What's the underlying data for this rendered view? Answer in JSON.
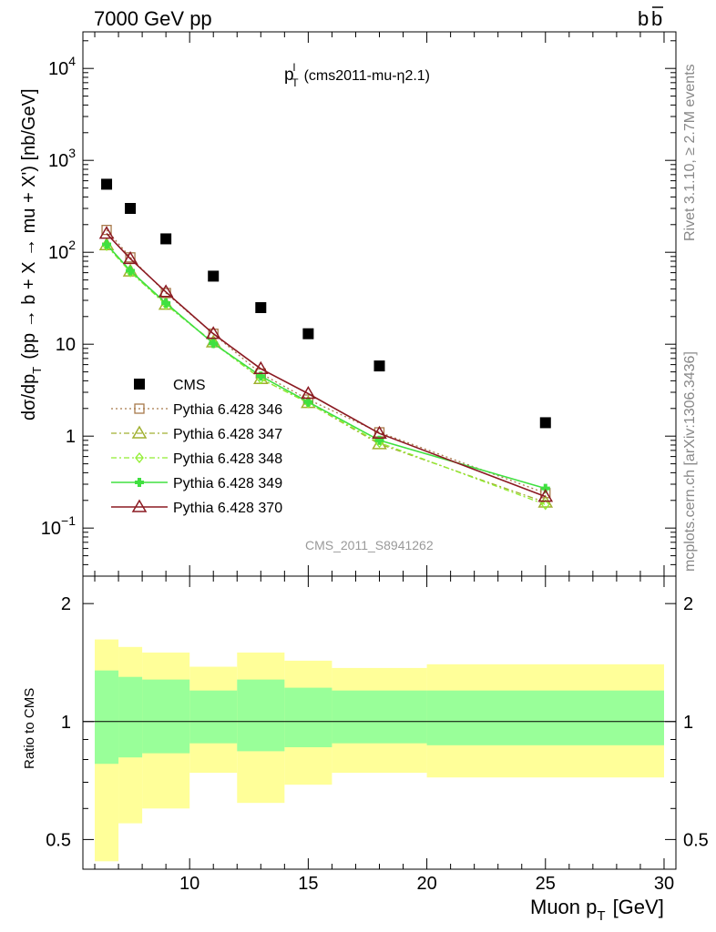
{
  "header": {
    "left": "7000 GeV pp",
    "right": "b",
    "right_bar": "b"
  },
  "side_text": {
    "rivet": "Rivet 3.1.10, ≥ 2.7M events",
    "mcplots": "mcplots.cern.ch [arXiv:1306.3436]"
  },
  "chart_data": [
    {
      "type": "scatter",
      "title": {
        "p": "p",
        "sup": "l",
        "sub": "T",
        "rest": "(cms2011-mu-η2.1)"
      },
      "watermark": "CMS_2011_S8941262",
      "ylabel": {
        "a": "dσ/dp",
        "a_sub": "T",
        "b": "(pp → b + X → mu + X') [nb/GeV]"
      },
      "yscale": "log",
      "ylim": [
        0.03,
        25000
      ],
      "xlim": [
        5.5,
        30.5
      ],
      "y_ticks": [
        {
          "value": 10000,
          "base": "10",
          "exp": "4"
        },
        {
          "value": 1000,
          "base": "10",
          "exp": "3"
        },
        {
          "value": 100,
          "base": "10",
          "exp": "2"
        },
        {
          "value": 10,
          "base": "10",
          "exp": ""
        },
        {
          "value": 1,
          "base": "1",
          "exp": ""
        },
        {
          "value": 0.1,
          "base": "10",
          "exp": "−1"
        }
      ],
      "legend_position": "center-left",
      "series": [
        {
          "name": "CMS",
          "marker": "square-filled",
          "color": "#000000",
          "x": [
            6.5,
            7.5,
            9,
            11,
            13,
            15,
            18,
            25
          ],
          "y": [
            550,
            300,
            140,
            55,
            25,
            13,
            5.8,
            1.4
          ]
        },
        {
          "name": "Pythia 6.428 346",
          "marker": "square-open",
          "line": "dotted",
          "color": "#a8794a",
          "x": [
            6.5,
            7.5,
            9,
            11,
            13,
            15,
            18,
            25
          ],
          "y": [
            175,
            88,
            36,
            13,
            4.8,
            2.5,
            1.1,
            0.24
          ]
        },
        {
          "name": "Pythia 6.428 347",
          "marker": "triangle-open",
          "line": "dashdot",
          "color": "#a0b030",
          "x": [
            6.5,
            7.5,
            9,
            11,
            13,
            15,
            18,
            25
          ],
          "y": [
            120,
            62,
            27,
            10.5,
            4.2,
            2.3,
            0.82,
            0.19
          ]
        },
        {
          "name": "Pythia 6.428 348",
          "marker": "diamond-open",
          "line": "dashdot",
          "color": "#90ee30",
          "x": [
            6.5,
            7.5,
            9,
            11,
            13,
            15,
            18,
            25
          ],
          "y": [
            118,
            61,
            27,
            10.3,
            4.2,
            2.3,
            0.85,
            0.18
          ]
        },
        {
          "name": "Pythia 6.428 349",
          "marker": "cross-filled",
          "line": "solid",
          "color": "#40e040",
          "x": [
            6.5,
            7.5,
            9,
            11,
            13,
            15,
            18,
            25
          ],
          "y": [
            122,
            63,
            28,
            10.2,
            4.5,
            2.35,
            0.9,
            0.27
          ]
        },
        {
          "name": "Pythia 6.428 370",
          "marker": "triangle-open",
          "line": "solid",
          "color": "#8b1a22",
          "x": [
            6.5,
            7.5,
            9,
            11,
            13,
            15,
            18,
            25
          ],
          "y": [
            160,
            85,
            37,
            13,
            5.4,
            2.9,
            1.07,
            0.22
          ]
        }
      ]
    },
    {
      "type": "area",
      "ylabel": "Ratio to CMS",
      "xlabel": {
        "a": "Muon p",
        "sub": "T",
        "b": "[GeV]"
      },
      "yscale": "log",
      "ylim": [
        0.42,
        2.35
      ],
      "xlim": [
        5.5,
        30.5
      ],
      "x_ticks": [
        "10",
        "15",
        "20",
        "25",
        "30"
      ],
      "x_tick_values": [
        10,
        15,
        20,
        25,
        30
      ],
      "y_ticks": [
        "0.5",
        "1",
        "2"
      ],
      "y_tick_values": [
        0.5,
        1,
        2
      ],
      "reference_line": 1,
      "bins": [
        6,
        7,
        8,
        10,
        12,
        14,
        16,
        20,
        30
      ],
      "band_outer": {
        "color": "#ffff99",
        "low": [
          0.44,
          0.55,
          0.6,
          0.74,
          0.62,
          0.69,
          0.74,
          0.72
        ],
        "high": [
          1.62,
          1.55,
          1.5,
          1.38,
          1.5,
          1.43,
          1.37,
          1.4
        ]
      },
      "band_inner": {
        "color": "#99ff99",
        "low": [
          0.78,
          0.81,
          0.83,
          0.88,
          0.84,
          0.86,
          0.88,
          0.87
        ],
        "high": [
          1.35,
          1.3,
          1.28,
          1.2,
          1.28,
          1.22,
          1.2,
          1.2
        ]
      }
    }
  ]
}
